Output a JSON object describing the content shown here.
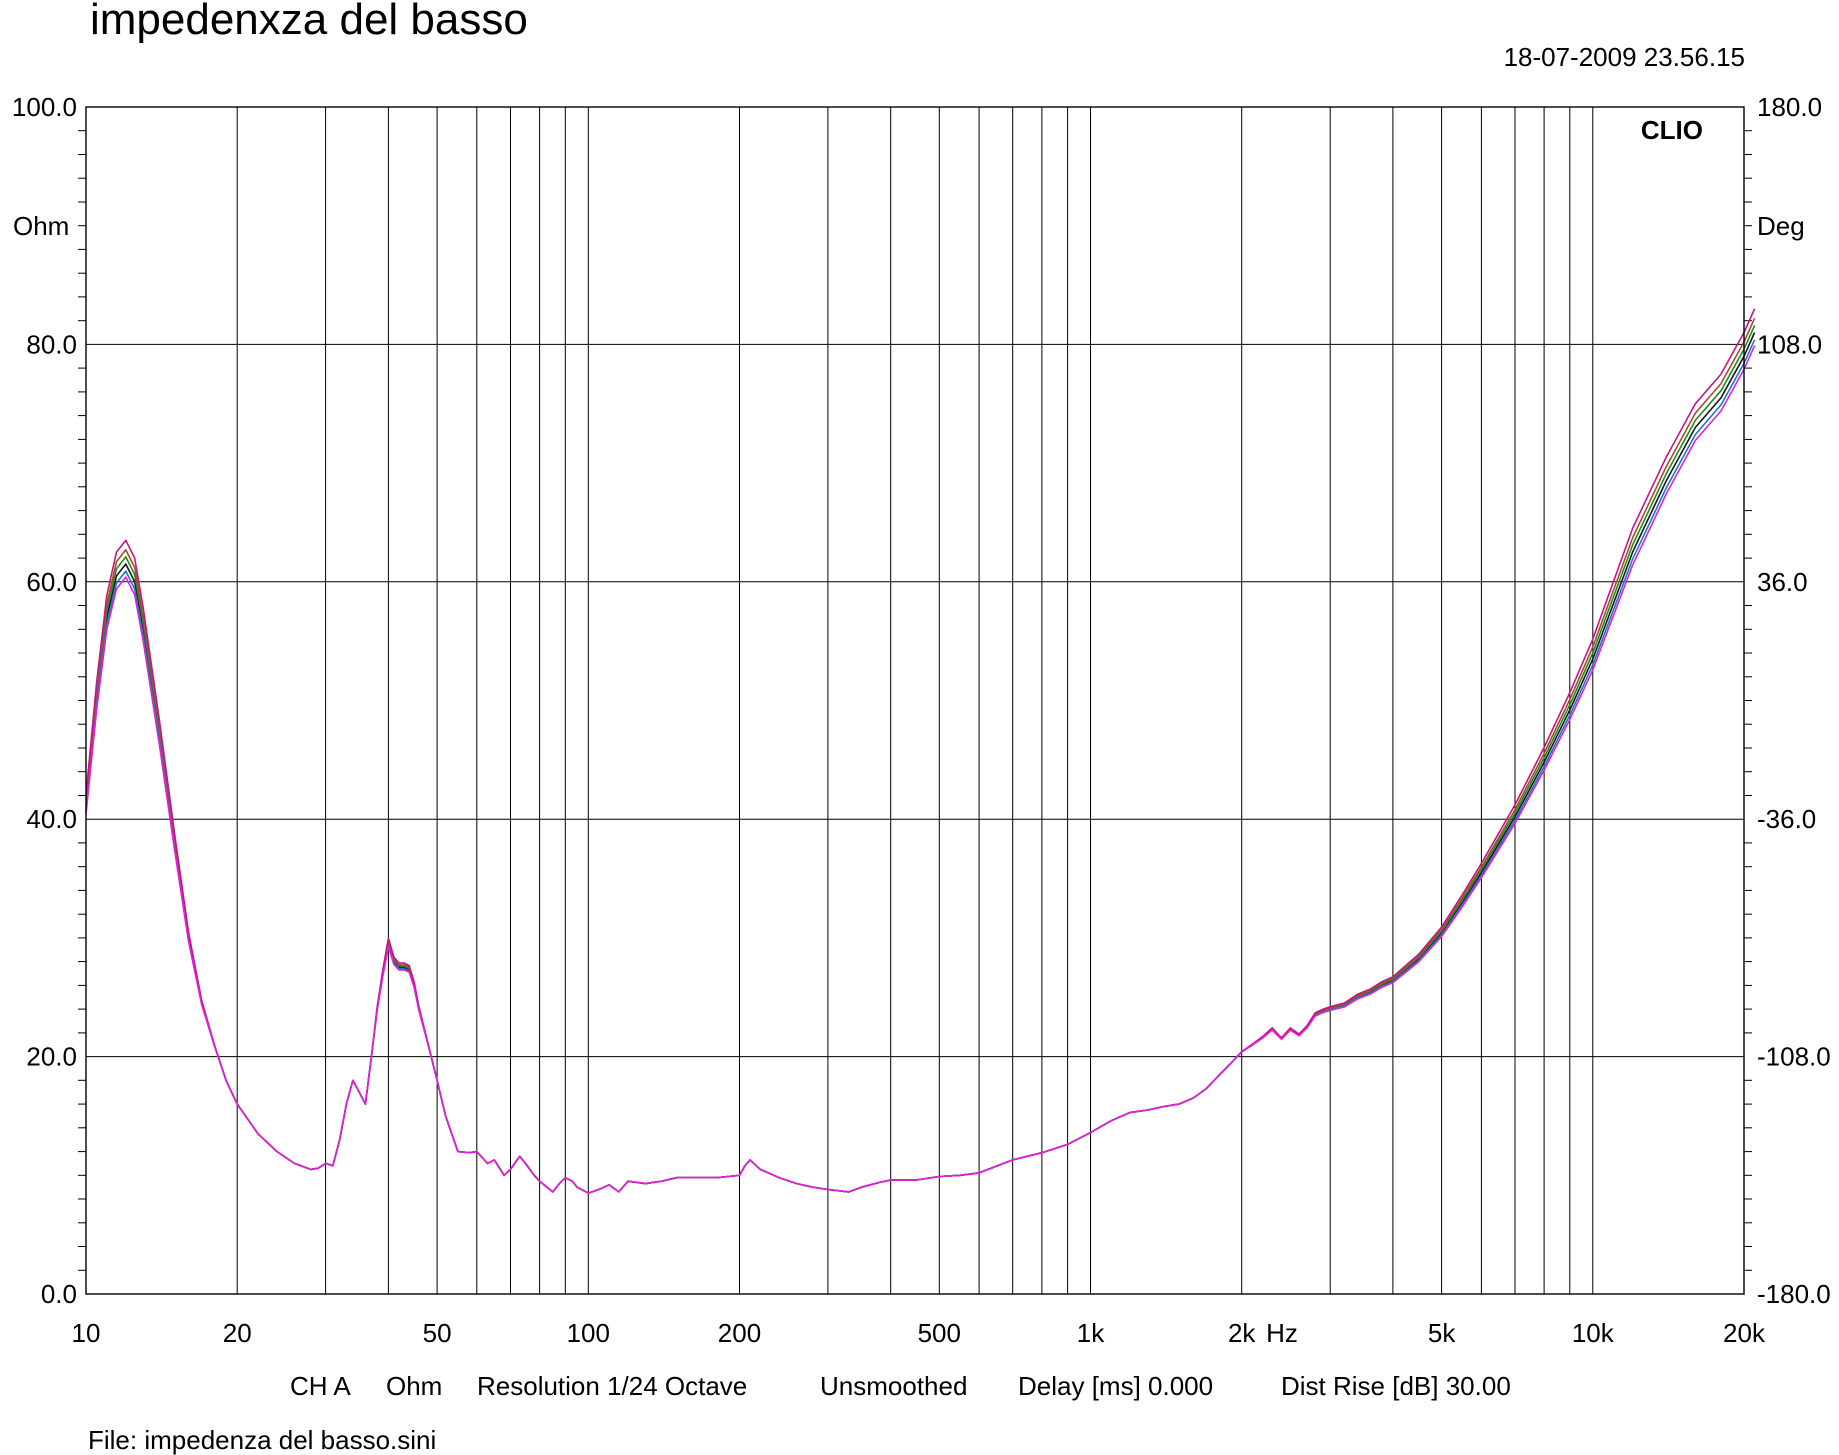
{
  "chart_data": {
    "type": "line",
    "title": "impedenxza del basso",
    "timestamp": "18-07-2009 23.56.15",
    "brand": "CLIO",
    "x_scale": "log",
    "xlim": [
      10,
      20000
    ],
    "ylim_left": [
      0,
      100
    ],
    "ylim_right": [
      -180,
      180
    ],
    "left_unit": "Ohm",
    "right_unit": "Deg",
    "x_unit": "Hz",
    "grid": true,
    "x_ticks": [
      {
        "value": 10,
        "label": "10"
      },
      {
        "value": 20,
        "label": "20"
      },
      {
        "value": 50,
        "label": "50"
      },
      {
        "value": 100,
        "label": "100"
      },
      {
        "value": 200,
        "label": "200"
      },
      {
        "value": 500,
        "label": "500"
      },
      {
        "value": 1000,
        "label": "1k"
      },
      {
        "value": 2000,
        "label": "2k"
      },
      {
        "value": 5000,
        "label": "5k"
      },
      {
        "value": 10000,
        "label": "10k"
      },
      {
        "value": 20000,
        "label": "20k"
      }
    ],
    "x_gridlines": [
      20,
      30,
      40,
      50,
      60,
      70,
      80,
      90,
      100,
      200,
      300,
      400,
      500,
      600,
      700,
      800,
      900,
      1000,
      2000,
      3000,
      4000,
      5000,
      6000,
      7000,
      8000,
      9000,
      10000,
      20000
    ],
    "y_ticks_left": [
      {
        "value": 0,
        "label": "0.0"
      },
      {
        "value": 20,
        "label": "20.0"
      },
      {
        "value": 40,
        "label": "40.0"
      },
      {
        "value": 60,
        "label": "60.0"
      },
      {
        "value": 80,
        "label": "80.0"
      },
      {
        "value": 100,
        "label": "100.0"
      }
    ],
    "y_ticks_right": [
      {
        "value": -180,
        "label": "-180.0"
      },
      {
        "value": -108,
        "label": "-108.0"
      },
      {
        "value": -36,
        "label": "-36.0"
      },
      {
        "value": 36,
        "label": "36.0"
      },
      {
        "value": 108,
        "label": "108.0"
      },
      {
        "value": 180,
        "label": "180.0"
      }
    ],
    "series_colors": [
      "#1a1a1a",
      "#228b22",
      "#1f77c8",
      "#a0522d",
      "#c71585",
      "#dd22dd"
    ],
    "series_offsets": [
      0,
      0.6,
      -0.6,
      1.2,
      2.0,
      -1.1
    ],
    "series": [
      {
        "x": [
          10,
          10.5,
          11,
          11.5,
          12,
          12.5,
          13,
          14,
          15,
          16,
          17,
          18,
          19,
          20,
          22,
          24,
          26,
          28,
          29,
          30,
          31,
          32,
          33,
          34,
          35,
          36,
          37,
          38,
          39,
          40,
          41,
          42,
          43,
          44,
          45,
          46,
          48,
          50,
          52,
          55,
          58,
          60,
          63,
          65,
          68,
          70,
          73,
          75,
          78,
          80,
          85,
          88,
          90,
          93,
          95,
          100,
          105,
          110,
          115,
          120,
          130,
          140,
          150,
          160,
          170,
          180,
          190,
          200,
          205,
          210,
          220,
          240,
          260,
          280,
          300,
          330,
          350,
          380,
          400,
          450,
          500,
          550,
          600,
          700,
          800,
          900,
          1000,
          1100,
          1200,
          1300,
          1400,
          1500,
          1600,
          1700,
          1800,
          1900,
          2000,
          2100,
          2200,
          2300,
          2400,
          2500,
          2600,
          2700,
          2800,
          2900,
          3000,
          3200,
          3400,
          3600,
          3800,
          4000,
          4500,
          5000,
          5500,
          6000,
          7000,
          8000,
          9000,
          10000,
          12000,
          14000,
          16000,
          18000,
          20000,
          21000
        ],
        "values": [
          41,
          50,
          57,
          60.5,
          61.5,
          60,
          56,
          47,
          38,
          30,
          24.5,
          21,
          18,
          16,
          13.5,
          12,
          11,
          10.5,
          10.6,
          11,
          10.8,
          13,
          16,
          18,
          17,
          16,
          20,
          24,
          27,
          29.5,
          28,
          27.5,
          27.5,
          27.3,
          26,
          24,
          21,
          18,
          15,
          12,
          11.9,
          12,
          11,
          11.3,
          10,
          10.5,
          11.6,
          11,
          10,
          9.5,
          8.6,
          9.4,
          9.8,
          9.5,
          9,
          8.5,
          8.8,
          9.2,
          8.6,
          9.5,
          9.3,
          9.5,
          9.8,
          9.8,
          9.8,
          9.8,
          9.9,
          10,
          10.8,
          11.3,
          10.5,
          9.8,
          9.3,
          9,
          8.8,
          8.6,
          9.0,
          9.4,
          9.6,
          9.6,
          9.9,
          10,
          10.2,
          11.3,
          11.9,
          12.6,
          13.6,
          14.6,
          15.3,
          15.5,
          15.8,
          16,
          16.5,
          17.3,
          18.4,
          19.4,
          20.4,
          21,
          21.6,
          22.3,
          21.5,
          22.3,
          21.8,
          22.5,
          23.5,
          23.8,
          24,
          24.3,
          25,
          25.4,
          26,
          26.4,
          28.2,
          30.4,
          33,
          35.5,
          40.2,
          44.8,
          49.2,
          53.5,
          62.5,
          68.5,
          73,
          75.5,
          79,
          81
        ]
      }
    ]
  },
  "footer": {
    "channel": "CH A",
    "unit": "Ohm",
    "resolution": "Resolution 1/24 Octave",
    "smoothing": "Unsmoothed",
    "delay": "Delay [ms] 0.000",
    "dist_rise": "Dist Rise [dB] 30.00",
    "file": "File: impedenza del basso.sini"
  }
}
